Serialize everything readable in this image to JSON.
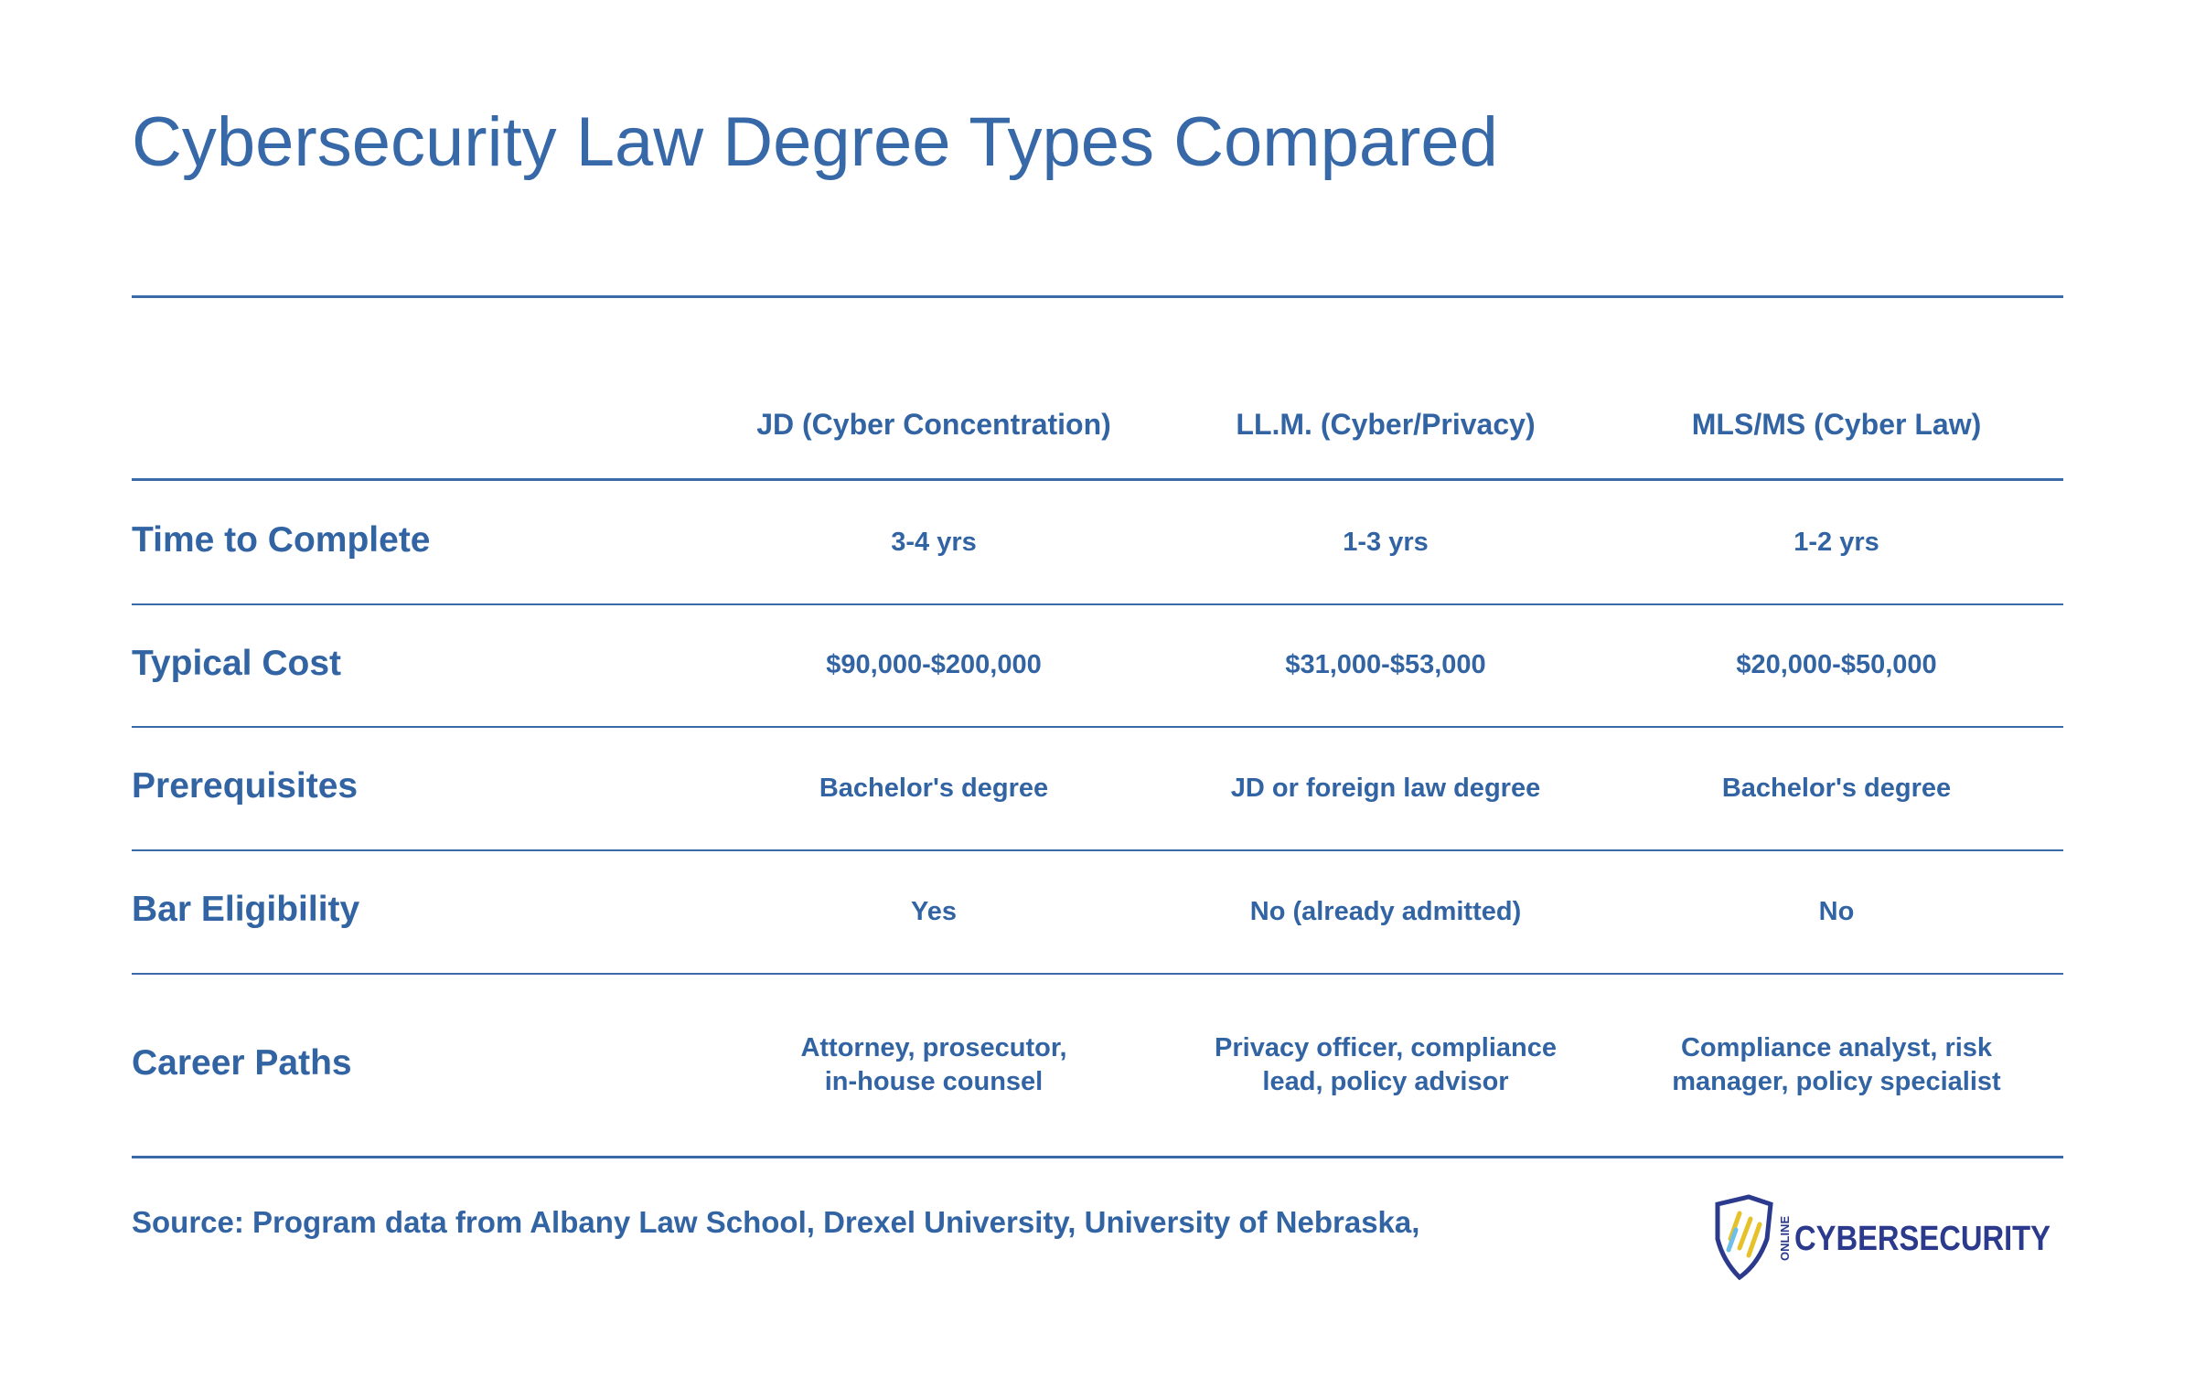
{
  "header": {
    "title": "Cybersecurity Law Degree Types Compared"
  },
  "table": {
    "columns": [
      "JD (Cyber Concentration)",
      "LL.M. (Cyber/Privacy)",
      "MLS/MS (Cyber Law)"
    ],
    "rows": [
      {
        "label": "Time to Complete",
        "cells": [
          [
            "3-4 yrs"
          ],
          [
            "1-3 yrs"
          ],
          [
            "1-2 yrs"
          ]
        ]
      },
      {
        "label": "Typical Cost",
        "cells": [
          [
            "$90,000-$200,000"
          ],
          [
            "$31,000-$53,000"
          ],
          [
            "$20,000-$50,000"
          ]
        ]
      },
      {
        "label": "Prerequisites",
        "cells": [
          [
            "Bachelor's degree"
          ],
          [
            "JD or foreign law degree"
          ],
          [
            "Bachelor's degree"
          ]
        ]
      },
      {
        "label": "Bar Eligibility",
        "cells": [
          [
            "Yes"
          ],
          [
            "No (already admitted)"
          ],
          [
            "No"
          ]
        ]
      },
      {
        "label": "Career Paths",
        "cells": [
          [
            "Attorney, prosecutor,",
            "in-house counsel"
          ],
          [
            "Privacy officer, compliance",
            "lead, policy advisor"
          ],
          [
            "Compliance analyst, risk",
            "manager, policy specialist"
          ]
        ]
      }
    ]
  },
  "footer": {
    "source": "Source: Program data from Albany Law School, Drexel University, University of Nebraska,",
    "logo": {
      "small": "ONLINE",
      "text": "CYBERSECURITY"
    }
  }
}
